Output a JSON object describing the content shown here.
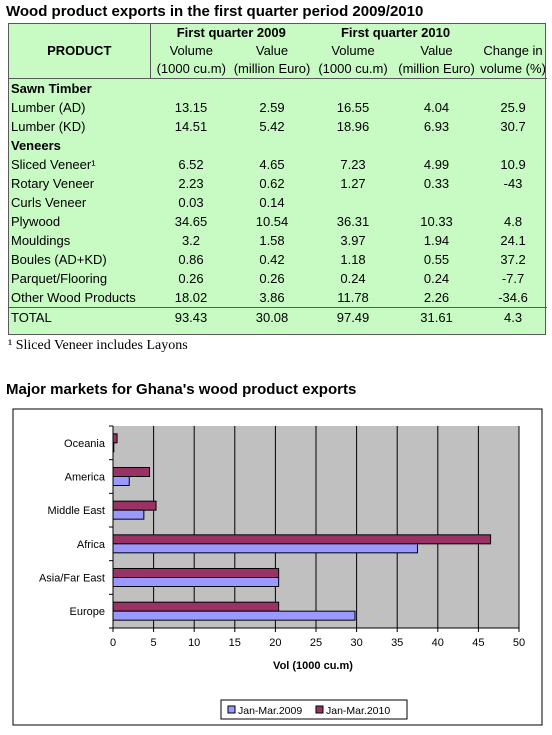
{
  "title": "Wood product exports in the first quarter period 2009/2010",
  "table": {
    "product_header": "PRODUCT",
    "period1": "First quarter 2009",
    "period2": "First quarter 2010",
    "col_vol": "Volume",
    "col_vol_unit": "(1000 cu.m)",
    "col_val": "Value",
    "col_val_unit": "(million Euro)",
    "col_chg": "Change in",
    "col_chg_unit": "volume (%)",
    "categories": [
      {
        "name": "Sawn Timber",
        "rows": [
          {
            "product": "Lumber (AD)",
            "v09": "13.15",
            "e09": "2.59",
            "v10": "16.55",
            "e10": "4.04",
            "chg": "25.9"
          },
          {
            "product": "Lumber (KD)",
            "v09": "14.51",
            "e09": "5.42",
            "v10": "18.96",
            "e10": "6.93",
            "chg": "30.7"
          }
        ]
      },
      {
        "name": "Veneers",
        "rows": [
          {
            "product": "Sliced Veneer¹",
            "v09": "6.52",
            "e09": "4.65",
            "v10": "7.23",
            "e10": "4.99",
            "chg": "10.9"
          },
          {
            "product": "Rotary Veneer",
            "v09": "2.23",
            "e09": "0.62",
            "v10": "1.27",
            "e10": "0.33",
            "chg": "-43"
          },
          {
            "product": "Curls Veneer",
            "v09": "0.03",
            "e09": "0.14",
            "v10": "",
            "e10": "",
            "chg": ""
          },
          {
            "product": "Plywood",
            "v09": "34.65",
            "e09": "10.54",
            "v10": "36.31",
            "e10": "10.33",
            "chg": "4.8"
          },
          {
            "product": "Mouldings",
            "v09": "3.2",
            "e09": "1.58",
            "v10": "3.97",
            "e10": "1.94",
            "chg": "24.1"
          },
          {
            "product": "Boules (AD+KD)",
            "v09": "0.86",
            "e09": "0.42",
            "v10": "1.18",
            "e10": "0.55",
            "chg": "37.2"
          },
          {
            "product": "Parquet/Flooring",
            "v09": "0.26",
            "e09": "0.26",
            "v10": "0.24",
            "e10": "0.24",
            "chg": "-7.7"
          },
          {
            "product": "Other Wood Products",
            "v09": "18.02",
            "e09": "3.86",
            "v10": "11.78",
            "e10": "2.26",
            "chg": "-34.6"
          }
        ]
      }
    ],
    "total": {
      "product": "TOTAL",
      "v09": "93.43",
      "e09": "30.08",
      "v10": "97.49",
      "e10": "31.61",
      "chg": "4.3"
    }
  },
  "footnote": "¹ Sliced Veneer  includes Layons",
  "chart_title": "Major markets for Ghana's wood product exports",
  "chart_data": {
    "type": "bar",
    "orientation": "horizontal",
    "categories": [
      "Europe",
      "Asia/Far East",
      "Africa",
      "Middle East",
      "America",
      "Oceania"
    ],
    "series": [
      {
        "name": "Jan-Mar.2009",
        "color": "#9999ff",
        "values": [
          29.8,
          20.4,
          37.5,
          3.8,
          2.0,
          0.1
        ]
      },
      {
        "name": "Jan-Mar.2010",
        "color": "#993366",
        "values": [
          20.4,
          20.4,
          46.5,
          5.3,
          4.5,
          0.5
        ]
      }
    ],
    "xlabel": "Vol (1000 cu.m)",
    "ylabel": "",
    "xlim": [
      0,
      50
    ],
    "xticks": [
      0,
      5,
      10,
      15,
      20,
      25,
      30,
      35,
      40,
      45,
      50
    ],
    "grid": "vertical",
    "legend": "bottom",
    "plot_background": "#c0c0c0"
  }
}
